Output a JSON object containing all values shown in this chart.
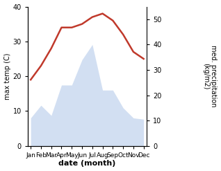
{
  "months": [
    "Jan",
    "Feb",
    "Mar",
    "Apr",
    "May",
    "Jun",
    "Jul",
    "Aug",
    "Sep",
    "Oct",
    "Nov",
    "Dec"
  ],
  "temperature": [
    19,
    23,
    28,
    34,
    34,
    35,
    37,
    38,
    36,
    32,
    27,
    25
  ],
  "precipitation": [
    11,
    16,
    12,
    24,
    24,
    34,
    40,
    22,
    22,
    15,
    11,
    10.5
  ],
  "temp_color": "#c0392b",
  "precip_color": "#aec6e8",
  "temp_ylim": [
    0,
    40
  ],
  "precip_ylim": [
    0,
    55
  ],
  "precip_scale_factor": 1.375,
  "xlabel": "date (month)",
  "ylabel_left": "max temp (C)",
  "ylabel_right": "med. precipitation\n(kg/m2)",
  "temp_linewidth": 1.8,
  "precip_alpha": 0.55,
  "right_yticks": [
    0,
    10,
    20,
    30,
    40,
    50
  ],
  "left_yticks": [
    0,
    10,
    20,
    30,
    40
  ]
}
